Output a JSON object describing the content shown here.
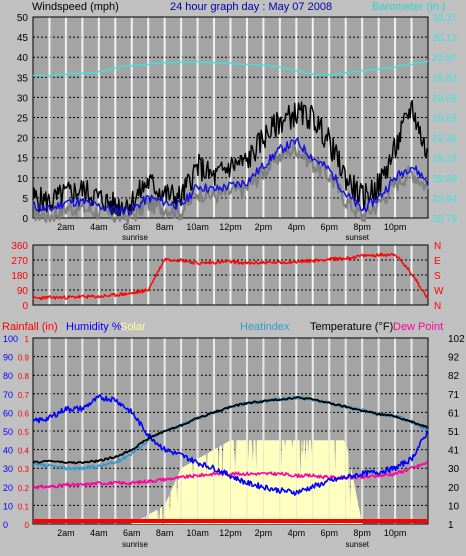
{
  "colors": {
    "background": "#c0c0c0",
    "plot_bg": "#a4a4a4",
    "grid_major": "#ffffff",
    "grid_minor": "#000000",
    "wind_gust": "#000000",
    "wind_avg": "#1010e0",
    "wind_dir_line": "#808080",
    "barometer": "#40e0e0",
    "direction": "#ff0000",
    "temperature": "#000000",
    "dew_point": "#ff00a0",
    "humidity": "#0000ff",
    "heat_index": "#3399cc",
    "solar": "#ffffc0",
    "rain": "#ff0000"
  },
  "chart_data": [
    {
      "id": "wind-barometer",
      "type": "line",
      "title": "24 hour graph day : May 07 2008",
      "left_label": "Windspeed (mph)",
      "right_label": "Barometer (in.)",
      "y_left_ticks": [
        "0",
        "5",
        "10",
        "15",
        "20",
        "25",
        "30",
        "35",
        "40",
        "45",
        "50"
      ],
      "y_left_range": [
        0,
        50
      ],
      "y_right_ticks": [
        "28.79",
        "28.94",
        "29.09",
        "29.23",
        "29.38",
        "29.53",
        "29.68",
        "29.83",
        "29.97",
        "30.12",
        "30.27"
      ],
      "x_tick_labels": [
        "2am",
        "4am",
        "6am",
        "8am",
        "10am",
        "12pm",
        "2pm",
        "4pm",
        "6pm",
        "8pm",
        "10pm"
      ],
      "sun_labels": [
        "sunrise",
        "sunset"
      ],
      "x_hours": [
        0,
        1,
        2,
        3,
        4,
        5,
        6,
        7,
        8,
        9,
        10,
        11,
        12,
        13,
        14,
        15,
        16,
        17,
        18,
        19,
        20,
        21,
        22,
        23,
        24
      ],
      "series": [
        {
          "key": "gust",
          "values": [
            5,
            4,
            6,
            7,
            5,
            3,
            4,
            9,
            6,
            5,
            13,
            10,
            13,
            14,
            20,
            24,
            26,
            25,
            19,
            10,
            5,
            8,
            17,
            28,
            15
          ]
        },
        {
          "key": "average",
          "values": [
            3,
            2,
            4,
            4,
            3,
            2,
            2,
            5,
            4,
            3,
            8,
            7,
            8,
            9,
            13,
            17,
            19,
            15,
            12,
            6,
            2,
            5,
            10,
            13,
            9
          ]
        },
        {
          "key": "barometer",
          "values": [
            35.5,
            35.3,
            35.8,
            36.0,
            36.3,
            37.3,
            37.9,
            38.3,
            38.6,
            38.8,
            38.8,
            38.6,
            38.4,
            38.3,
            38.1,
            37.6,
            36.6,
            35.7,
            35.5,
            36.1,
            36.7,
            37.1,
            37.6,
            38.3,
            39.0
          ]
        }
      ]
    },
    {
      "id": "wind-direction",
      "type": "line",
      "y_left_ticks": [
        "0",
        "90",
        "180",
        "270",
        "360"
      ],
      "y_left_range": [
        0,
        360
      ],
      "y_right_ticks": [
        "N",
        "E",
        "S",
        "W",
        "N"
      ],
      "series": [
        {
          "key": "direction",
          "values": [
            40,
            45,
            45,
            50,
            50,
            60,
            70,
            90,
            275,
            270,
            250,
            255,
            260,
            250,
            255,
            255,
            260,
            265,
            275,
            280,
            295,
            300,
            305,
            190,
            40
          ]
        }
      ]
    },
    {
      "id": "temp-humidity",
      "type": "line",
      "legend": [
        "Rainfall (in)",
        "Humidity %",
        "Solar",
        "Heatindex",
        "Temperature (°F)",
        "Dew Point"
      ],
      "y_left_ticks_rain": [
        "0",
        "0.1",
        "0.2",
        "0.3",
        "0.4",
        "0.5",
        "0.6",
        "0.7",
        "0.8",
        "0.9",
        "1"
      ],
      "y_left_ticks_humidity": [
        "0",
        "10",
        "20",
        "30",
        "40",
        "50",
        "60",
        "70",
        "80",
        "90",
        "100"
      ],
      "y_right_ticks": [
        "1",
        "10",
        "20",
        "30",
        "41",
        "51",
        "61",
        "71",
        "82",
        "92",
        "102"
      ],
      "series": [
        {
          "key": "humidity",
          "values": [
            55,
            57,
            62,
            62,
            68,
            67,
            60,
            48,
            40,
            37,
            33,
            30,
            26,
            22,
            20,
            18,
            17,
            20,
            23,
            25,
            27,
            28,
            30,
            35,
            50
          ]
        },
        {
          "key": "temperature",
          "values": [
            33,
            34,
            33,
            33,
            34,
            36,
            40,
            46,
            50,
            53,
            57,
            60,
            63,
            65,
            66,
            67,
            68,
            67,
            65,
            63,
            61,
            59,
            58,
            55,
            52
          ]
        },
        {
          "key": "heatindex",
          "values": [
            32,
            31,
            30,
            30,
            31,
            33,
            38,
            45,
            50,
            53,
            57,
            60,
            63,
            65,
            66,
            67,
            68,
            67,
            65,
            63,
            61,
            59,
            58,
            55,
            50
          ]
        },
        {
          "key": "dew_point",
          "values": [
            20,
            20,
            21,
            21,
            22,
            22,
            22,
            23,
            24,
            25,
            26,
            27,
            27,
            27,
            27,
            27,
            26,
            26,
            25,
            25,
            25,
            26,
            27,
            30,
            33
          ]
        },
        {
          "key": "solar",
          "values": [
            0,
            0,
            0,
            0,
            0,
            0,
            0,
            5,
            10,
            30,
            35,
            40,
            45,
            45,
            45,
            45,
            45,
            45,
            45,
            45,
            0,
            0,
            0,
            0,
            0
          ]
        },
        {
          "key": "rain",
          "values": [
            0.01,
            0.01,
            0.01,
            0.01,
            0.01,
            0.01,
            0.01,
            0.01,
            0.01,
            0.01,
            0.01,
            0.01,
            0.01,
            0.01,
            0.01,
            0.01,
            0.01,
            0.01,
            0.01,
            0.01,
            0.01,
            0.01,
            0.01,
            0.01,
            0.01
          ]
        }
      ]
    }
  ]
}
